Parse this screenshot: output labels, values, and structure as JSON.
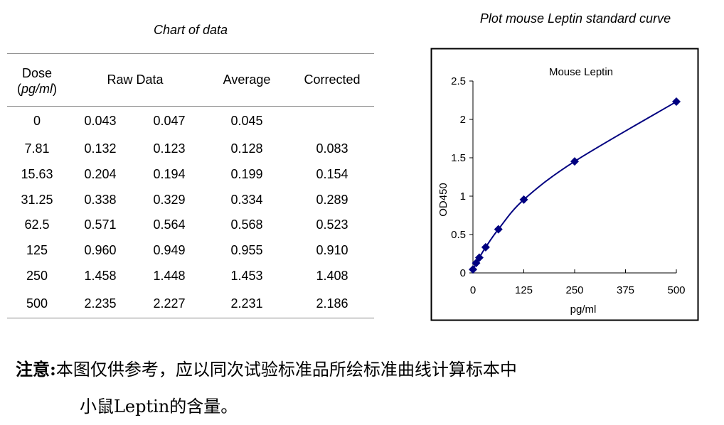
{
  "table": {
    "title": "Chart of data",
    "headers": {
      "dose": "Dose",
      "dose_unit": "pg/ml",
      "raw": "Raw Data",
      "average": "Average",
      "corrected": "Corrected"
    },
    "rows": [
      {
        "dose": "0",
        "raw1": "0.043",
        "raw2": "0.047",
        "average": "0.045",
        "corrected": ""
      },
      {
        "dose": "7.81",
        "raw1": "0.132",
        "raw2": "0.123",
        "average": "0.128",
        "corrected": "0.083"
      },
      {
        "dose": "15.63",
        "raw1": "0.204",
        "raw2": "0.194",
        "average": "0.199",
        "corrected": "0.154"
      },
      {
        "dose": "31.25",
        "raw1": "0.338",
        "raw2": "0.329",
        "average": "0.334",
        "corrected": "0.289"
      },
      {
        "dose": "62.5",
        "raw1": "0.571",
        "raw2": "0.564",
        "average": "0.568",
        "corrected": "0.523"
      },
      {
        "dose": "125",
        "raw1": "0.960",
        "raw2": "0.949",
        "average": "0.955",
        "corrected": "0.910"
      },
      {
        "dose": "250",
        "raw1": "1.458",
        "raw2": "1.448",
        "average": "1.453",
        "corrected": "1.408"
      },
      {
        "dose": "500",
        "raw1": "2.235",
        "raw2": "2.227",
        "average": "2.231",
        "corrected": "2.186"
      }
    ]
  },
  "chart_heading": "Plot mouse Leptin standard curve",
  "chart_data": {
    "type": "line",
    "title": "Mouse Leptin",
    "xlabel": "pg/ml",
    "ylabel": "OD450",
    "xlim": [
      0,
      500
    ],
    "ylim": [
      0,
      2.5
    ],
    "xticks": [
      "0",
      "125",
      "250",
      "375",
      "500"
    ],
    "yticks": [
      "0",
      "0.5",
      "1",
      "1.5",
      "2",
      "2.5"
    ],
    "grid": false,
    "color": "#000080",
    "marker": "diamond",
    "smooth": true,
    "x": [
      0,
      7.81,
      15.63,
      31.25,
      62.5,
      125,
      250,
      500
    ],
    "y": [
      0.045,
      0.128,
      0.199,
      0.334,
      0.568,
      0.955,
      1.453,
      2.231
    ]
  },
  "note": {
    "label": "注意:",
    "line1": "本图仅供参考，应以同次试验标准品所绘标准曲线计算标本中",
    "line2": "小鼠Leptin的含量。"
  }
}
